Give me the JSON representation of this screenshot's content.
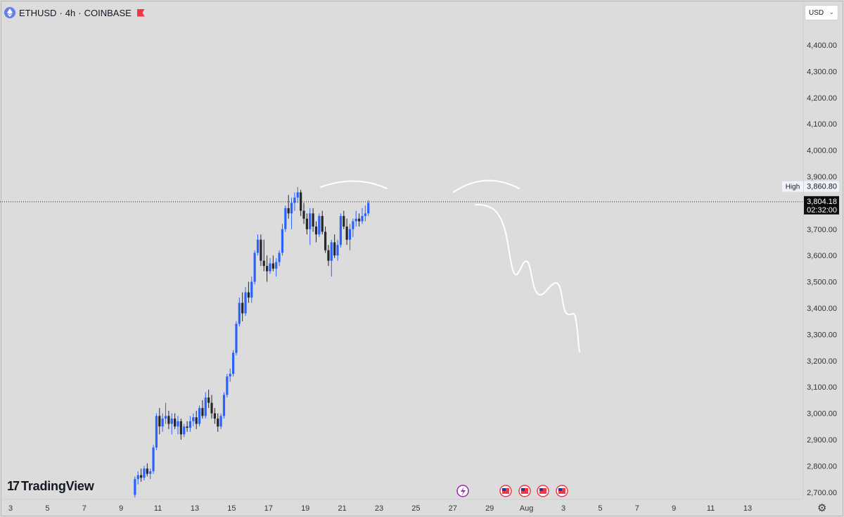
{
  "header": {
    "symbol": "ETHUSD",
    "sep1": "·",
    "interval": "4h",
    "sep2": "·",
    "exchange": "COINBASE",
    "coin_icon": "ethereum-icon",
    "flag_icon": "flag-icon"
  },
  "currency_selector": {
    "label": "USD",
    "chevron": "⌄"
  },
  "branding": {
    "mark": "17",
    "name": "TradingView"
  },
  "settings_icon": "⚙",
  "chart_data": {
    "type": "candlestick",
    "title": "",
    "xlabel": "",
    "ylabel": "",
    "ylim": [
      2670,
      4470
    ],
    "y_ticks": [
      "4,400.00",
      "4,300.00",
      "4,200.00",
      "4,100.00",
      "4,000.00",
      "3,900.00",
      "3,800.00",
      "3,700.00",
      "3,600.00",
      "3,500.00",
      "3,400.00",
      "3,300.00",
      "3,200.00",
      "3,100.00",
      "3,000.00",
      "2,900.00",
      "2,800.00",
      "2,700.00"
    ],
    "x_ticks": [
      "3",
      "5",
      "7",
      "9",
      "11",
      "13",
      "15",
      "17",
      "19",
      "21",
      "23",
      "25",
      "27",
      "29",
      "Aug",
      "3",
      "5",
      "7",
      "9",
      "11",
      "13"
    ],
    "x_range_days": [
      3,
      44
    ],
    "first_candle_day": 9.75,
    "candle_hours": 4,
    "candles": [
      [
        2690,
        2760,
        2680,
        2750
      ],
      [
        2750,
        2780,
        2730,
        2765
      ],
      [
        2765,
        2790,
        2740,
        2755
      ],
      [
        2755,
        2800,
        2745,
        2790
      ],
      [
        2790,
        2810,
        2760,
        2770
      ],
      [
        2770,
        2790,
        2750,
        2780
      ],
      [
        2780,
        2880,
        2770,
        2870
      ],
      [
        2870,
        3000,
        2860,
        2990
      ],
      [
        2990,
        3020,
        2920,
        2950
      ],
      [
        2950,
        3000,
        2930,
        2980
      ],
      [
        2980,
        3040,
        2960,
        2990
      ],
      [
        2990,
        3010,
        2940,
        2960
      ],
      [
        2960,
        3000,
        2920,
        2980
      ],
      [
        2980,
        3000,
        2940,
        2950
      ],
      [
        2950,
        2990,
        2920,
        2970
      ],
      [
        2970,
        2980,
        2900,
        2920
      ],
      [
        2920,
        2960,
        2910,
        2950
      ],
      [
        2950,
        2970,
        2930,
        2945
      ],
      [
        2945,
        2990,
        2930,
        2970
      ],
      [
        2970,
        3000,
        2950,
        2985
      ],
      [
        2985,
        3010,
        2940,
        2960
      ],
      [
        2960,
        3030,
        2950,
        3020
      ],
      [
        3020,
        3050,
        2980,
        2990
      ],
      [
        2990,
        3080,
        2980,
        3060
      ],
      [
        3060,
        3090,
        3020,
        3040
      ],
      [
        3040,
        3070,
        2980,
        3000
      ],
      [
        3000,
        3020,
        2960,
        2980
      ],
      [
        2980,
        3000,
        2930,
        2950
      ],
      [
        2950,
        3000,
        2940,
        2990
      ],
      [
        2990,
        3080,
        2980,
        3070
      ],
      [
        3070,
        3150,
        3060,
        3140
      ],
      [
        3140,
        3170,
        3120,
        3150
      ],
      [
        3150,
        3240,
        3140,
        3230
      ],
      [
        3230,
        3350,
        3220,
        3340
      ],
      [
        3340,
        3440,
        3330,
        3420
      ],
      [
        3420,
        3460,
        3350,
        3380
      ],
      [
        3380,
        3480,
        3370,
        3460
      ],
      [
        3460,
        3500,
        3420,
        3440
      ],
      [
        3440,
        3520,
        3420,
        3500
      ],
      [
        3500,
        3620,
        3490,
        3610
      ],
      [
        3610,
        3680,
        3600,
        3660
      ],
      [
        3660,
        3680,
        3560,
        3580
      ],
      [
        3580,
        3660,
        3540,
        3560
      ],
      [
        3560,
        3600,
        3500,
        3540
      ],
      [
        3540,
        3590,
        3530,
        3570
      ],
      [
        3570,
        3600,
        3540,
        3550
      ],
      [
        3550,
        3590,
        3520,
        3575
      ],
      [
        3575,
        3620,
        3560,
        3610
      ],
      [
        3610,
        3720,
        3600,
        3700
      ],
      [
        3700,
        3790,
        3690,
        3780
      ],
      [
        3780,
        3830,
        3740,
        3760
      ],
      [
        3760,
        3820,
        3700,
        3800
      ],
      [
        3800,
        3840,
        3770,
        3820
      ],
      [
        3820,
        3860,
        3800,
        3840
      ],
      [
        3840,
        3850,
        3750,
        3770
      ],
      [
        3770,
        3800,
        3720,
        3740
      ],
      [
        3740,
        3760,
        3680,
        3700
      ],
      [
        3700,
        3780,
        3640,
        3760
      ],
      [
        3760,
        3780,
        3690,
        3710
      ],
      [
        3710,
        3730,
        3650,
        3680
      ],
      [
        3680,
        3760,
        3670,
        3750
      ],
      [
        3750,
        3770,
        3680,
        3690
      ],
      [
        3690,
        3710,
        3610,
        3620
      ],
      [
        3620,
        3640,
        3560,
        3580
      ],
      [
        3580,
        3660,
        3520,
        3650
      ],
      [
        3650,
        3680,
        3590,
        3600
      ],
      [
        3600,
        3660,
        3580,
        3640
      ],
      [
        3640,
        3760,
        3630,
        3750
      ],
      [
        3750,
        3770,
        3700,
        3710
      ],
      [
        3710,
        3740,
        3640,
        3660
      ],
      [
        3660,
        3720,
        3620,
        3700
      ],
      [
        3700,
        3740,
        3670,
        3730
      ],
      [
        3730,
        3770,
        3710,
        3740
      ],
      [
        3740,
        3760,
        3710,
        3730
      ],
      [
        3730,
        3780,
        3720,
        3750
      ],
      [
        3750,
        3790,
        3730,
        3760
      ],
      [
        3760,
        3810,
        3750,
        3800
      ]
    ],
    "last_price": {
      "value": "3,804.18",
      "countdown": "02:32:00"
    },
    "high_marker": {
      "label": "High",
      "value": "3,860.80"
    },
    "up_color": "#2962ff",
    "down_color": "#26272b",
    "events": {
      "lightning_icon": "lightning-icon",
      "flag_icons": [
        "us-flag-icon",
        "us-flag-icon",
        "us-flag-icon",
        "us-flag-icon"
      ]
    }
  }
}
